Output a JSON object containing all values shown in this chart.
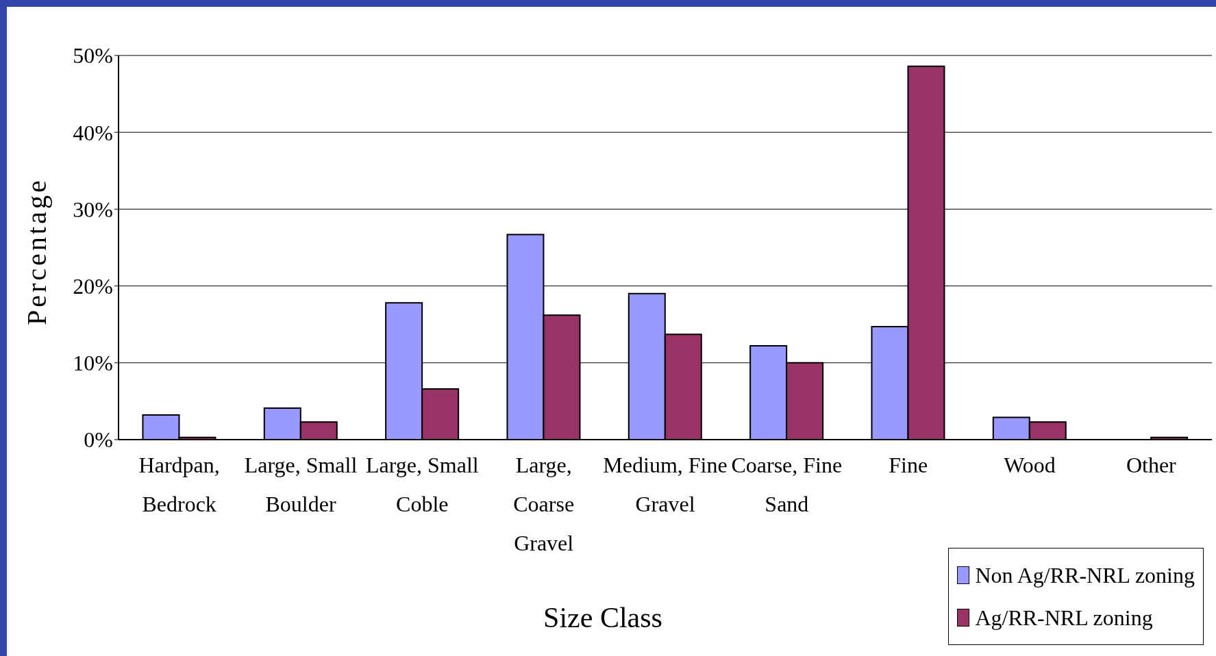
{
  "chart_data": {
    "type": "bar",
    "xlabel": "Size Class",
    "ylabel": "Percentage",
    "categories": [
      "Hardpan, Bedrock",
      "Large, Small Boulder",
      "Large, Small Coble",
      "Large, Coarse Gravel",
      "Medium, Fine Gravel",
      "Coarse, Fine Sand",
      "Fine",
      "Wood",
      "Other"
    ],
    "series": [
      {
        "name": "Non Ag/RR-NRL zoning",
        "color": "#9999ff",
        "values": [
          3.2,
          4.1,
          17.8,
          26.7,
          19.0,
          12.2,
          14.7,
          2.9,
          0
        ]
      },
      {
        "name": "Ag/RR-NRL zoning",
        "color": "#993366",
        "values": [
          0.3,
          2.3,
          6.6,
          16.2,
          13.7,
          10.0,
          48.6,
          2.3,
          0.3
        ]
      }
    ],
    "ylim": [
      0,
      50
    ],
    "yticks": [
      {
        "value": 0,
        "label": "0%"
      },
      {
        "value": 10,
        "label": "10%"
      },
      {
        "value": 20,
        "label": "20%"
      },
      {
        "value": 30,
        "label": "30%"
      },
      {
        "value": 40,
        "label": "40%"
      },
      {
        "value": 50,
        "label": "50%"
      }
    ],
    "grid": "y",
    "legend": "bottom right"
  }
}
